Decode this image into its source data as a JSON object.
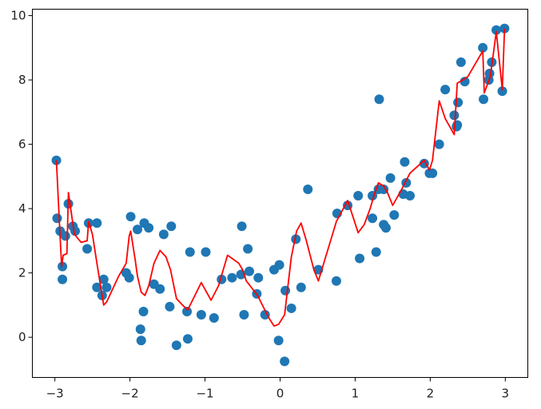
{
  "chart_data": {
    "type": "scatter",
    "title": "",
    "xlabel": "",
    "ylabel": "",
    "xlim": [
      -3.3,
      3.3
    ],
    "ylim": [
      -1.25,
      10.2
    ],
    "xticks": [
      -3,
      -2,
      -1,
      0,
      1,
      2,
      3
    ],
    "yticks": [
      0,
      2,
      4,
      6,
      8,
      10
    ],
    "xtick_labels": [
      "−3",
      "−2",
      "−1",
      "0",
      "1",
      "2",
      "3"
    ],
    "ytick_labels": [
      "0",
      "2",
      "4",
      "6",
      "8",
      "10"
    ],
    "grid": false,
    "legend": "none",
    "series": [
      {
        "kind": "scatter",
        "color": "#1f77b4",
        "x": [
          -2.98,
          -2.97,
          -2.93,
          -2.9,
          -2.9,
          -2.86,
          -2.82,
          -2.76,
          -2.73,
          -2.57,
          -2.55,
          -2.44,
          -2.44,
          -2.37,
          -2.35,
          -2.31,
          -2.05,
          -2.01,
          -1.99,
          -1.9,
          -1.86,
          -1.85,
          -1.82,
          -1.81,
          -1.75,
          -1.68,
          -1.6,
          -1.55,
          -1.47,
          -1.45,
          -1.38,
          -1.24,
          -1.23,
          -1.2,
          -1.05,
          -0.99,
          -0.88,
          -0.78,
          -0.64,
          -0.52,
          -0.51,
          -0.48,
          -0.43,
          -0.41,
          -0.31,
          -0.29,
          -0.2,
          -0.08,
          -0.02,
          -0.01,
          0.06,
          0.07,
          0.15,
          0.21,
          0.28,
          0.37,
          0.51,
          0.75,
          0.76,
          0.9,
          1.04,
          1.06,
          1.23,
          1.23,
          1.28,
          1.31,
          1.32,
          1.38,
          1.38,
          1.41,
          1.47,
          1.52,
          1.64,
          1.66,
          1.68,
          1.73,
          1.92,
          1.99,
          2.03,
          2.12,
          2.2,
          2.32,
          2.35,
          2.36,
          2.37,
          2.41,
          2.46,
          2.7,
          2.71,
          2.78,
          2.79,
          2.82,
          2.88,
          2.96,
          2.99
        ],
        "y": [
          5.5,
          3.7,
          3.3,
          2.2,
          1.8,
          3.15,
          4.15,
          3.45,
          3.3,
          2.75,
          3.55,
          3.55,
          1.55,
          1.3,
          1.8,
          1.55,
          2.0,
          1.85,
          3.75,
          3.35,
          0.25,
          -0.1,
          0.8,
          3.55,
          3.4,
          1.65,
          1.5,
          3.2,
          0.95,
          3.45,
          -0.25,
          0.8,
          -0.05,
          2.65,
          0.7,
          2.65,
          0.6,
          1.8,
          1.85,
          1.95,
          3.45,
          0.7,
          2.75,
          2.05,
          1.35,
          1.85,
          0.7,
          2.1,
          -0.1,
          2.25,
          -0.75,
          1.45,
          0.9,
          3.05,
          1.55,
          4.6,
          2.1,
          1.75,
          3.85,
          4.1,
          4.4,
          2.45,
          4.4,
          3.7,
          2.65,
          4.6,
          7.4,
          3.5,
          4.6,
          3.4,
          4.95,
          3.8,
          4.45,
          5.45,
          4.8,
          4.4,
          5.4,
          5.1,
          5.1,
          6.0,
          7.7,
          6.9,
          6.55,
          6.6,
          7.3,
          8.55,
          7.95,
          9.0,
          7.4,
          8.0,
          8.2,
          8.55,
          9.55,
          7.65,
          9.6
        ]
      },
      {
        "kind": "line",
        "color": "#ff0000",
        "x": [
          -2.98,
          -2.93,
          -2.91,
          -2.89,
          -2.84,
          -2.82,
          -2.74,
          -2.65,
          -2.57,
          -2.55,
          -2.5,
          -2.44,
          -2.35,
          -2.31,
          -2.15,
          -2.05,
          -2.01,
          -1.99,
          -1.93,
          -1.9,
          -1.85,
          -1.8,
          -1.75,
          -1.68,
          -1.6,
          -1.52,
          -1.46,
          -1.38,
          -1.3,
          -1.23,
          -1.05,
          -0.92,
          -0.82,
          -0.7,
          -0.64,
          -0.55,
          -0.5,
          -0.45,
          -0.3,
          -0.15,
          -0.08,
          -0.02,
          0.06,
          0.1,
          0.15,
          0.22,
          0.28,
          0.35,
          0.45,
          0.51,
          0.75,
          0.9,
          1.04,
          1.12,
          1.2,
          1.25,
          1.31,
          1.38,
          1.43,
          1.5,
          1.62,
          1.73,
          1.92,
          1.99,
          2.03,
          2.12,
          2.2,
          2.32,
          2.36,
          2.4,
          2.5,
          2.7,
          2.72,
          2.8,
          2.88,
          2.96,
          2.99
        ],
        "y": [
          5.5,
          3.1,
          2.2,
          2.55,
          2.6,
          4.5,
          3.2,
          2.95,
          3.0,
          3.6,
          3.2,
          2.3,
          1.0,
          1.1,
          1.9,
          2.3,
          3.15,
          3.3,
          2.4,
          1.9,
          1.4,
          1.3,
          1.6,
          2.3,
          2.7,
          2.5,
          2.1,
          1.2,
          1.0,
          0.85,
          1.7,
          1.15,
          1.6,
          2.55,
          2.45,
          2.3,
          2.1,
          1.75,
          1.3,
          0.6,
          0.35,
          0.4,
          0.7,
          1.5,
          2.5,
          3.3,
          3.55,
          3.0,
          2.1,
          1.75,
          3.6,
          4.25,
          3.25,
          3.5,
          4.0,
          4.4,
          4.8,
          4.7,
          4.5,
          4.1,
          4.6,
          5.1,
          5.5,
          5.2,
          5.5,
          7.35,
          6.8,
          6.3,
          7.9,
          7.95,
          8.1,
          8.9,
          7.6,
          8.1,
          9.5,
          7.7,
          9.6
        ]
      }
    ]
  }
}
